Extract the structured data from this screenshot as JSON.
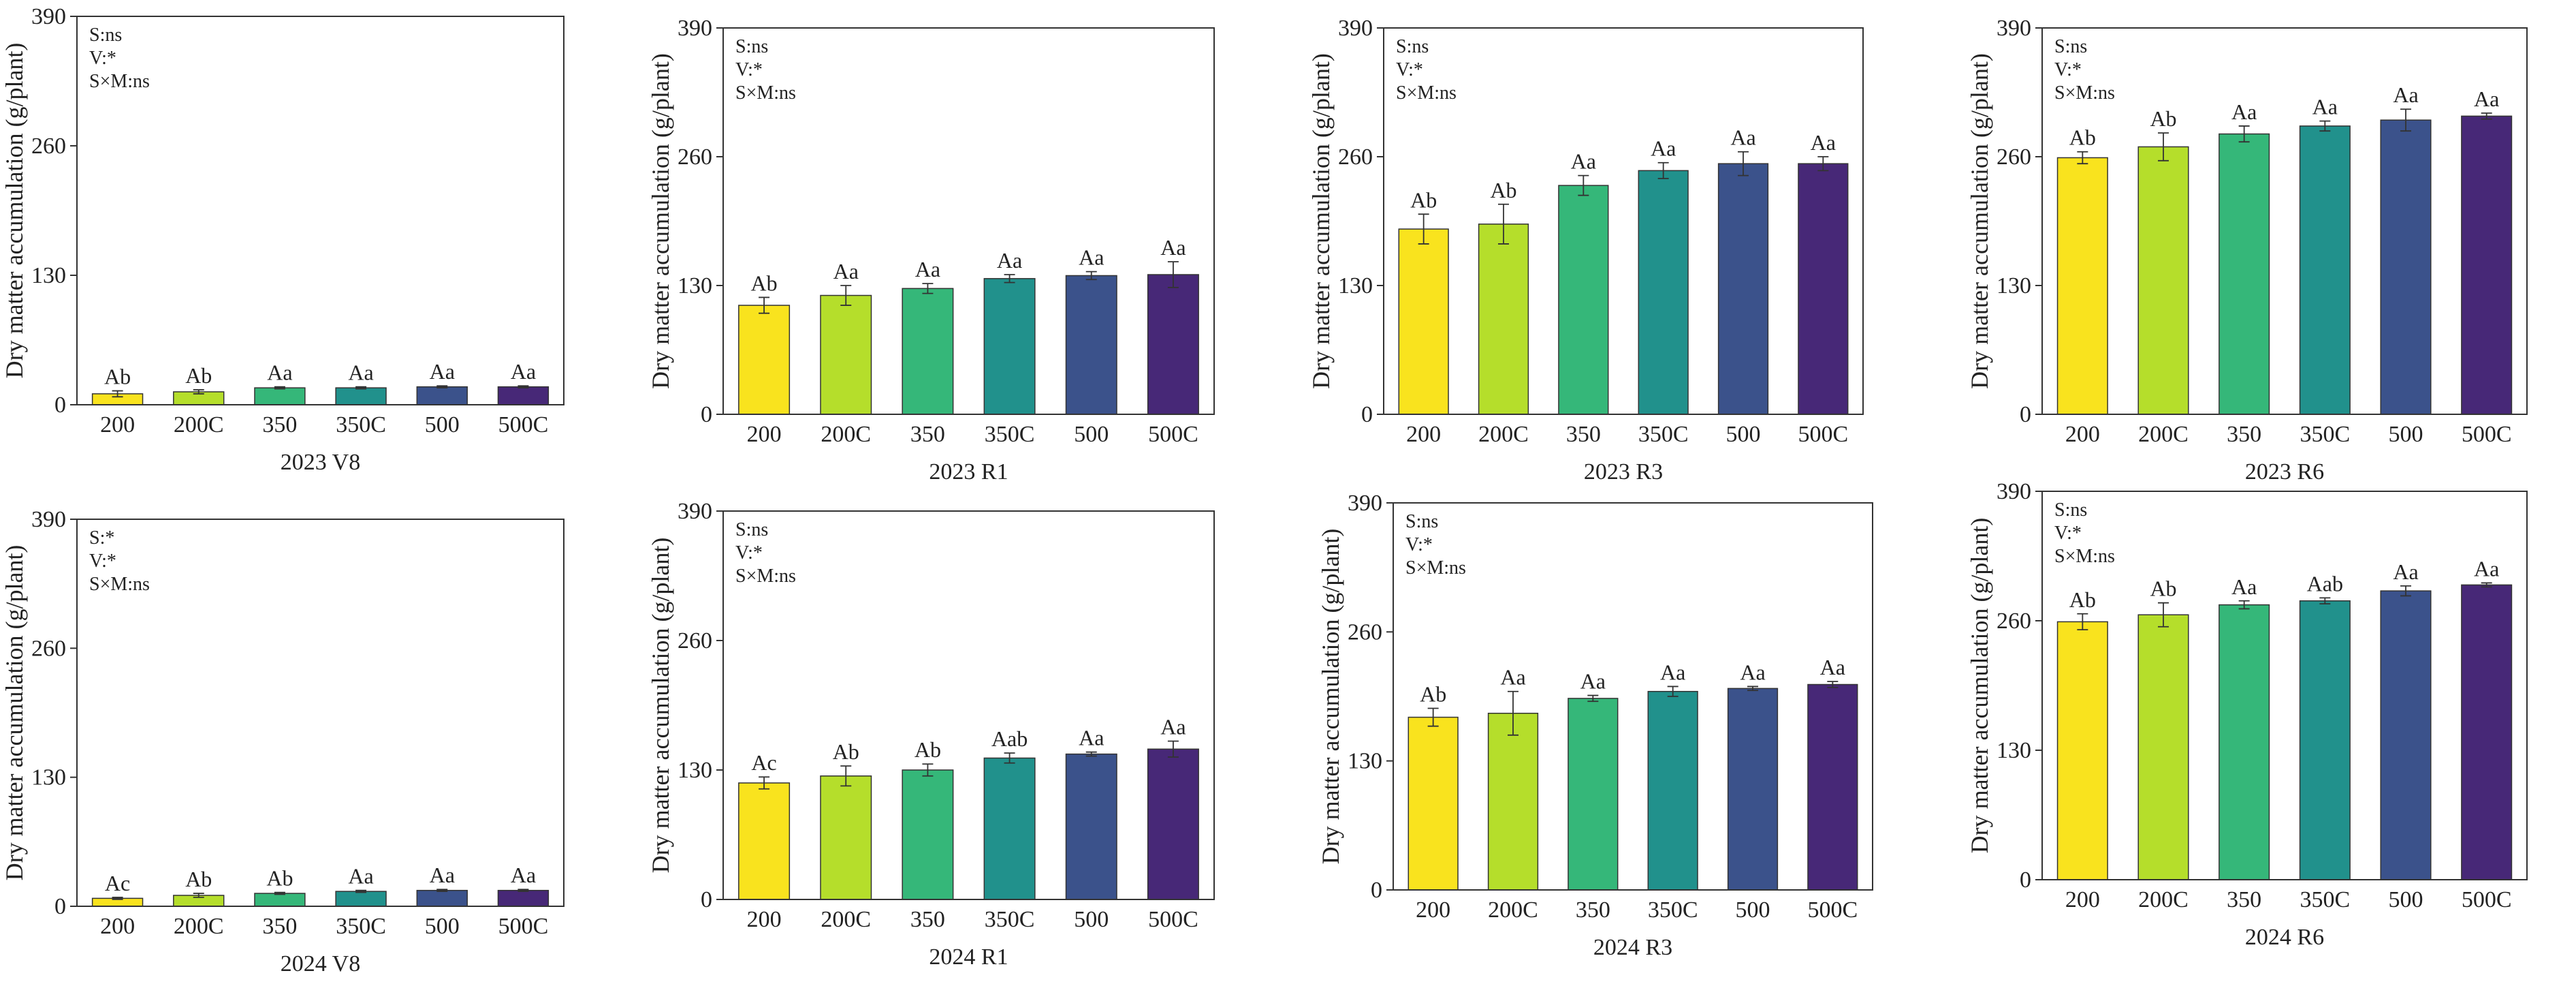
{
  "chart_data": [
    {
      "type": "bar",
      "title": "2023 V8",
      "y_label": "Dry matter accumulation (g/plant)",
      "annotations": [
        "S:ns",
        "V:*",
        "S×M:ns"
      ],
      "categories": [
        "200",
        "200C",
        "350",
        "350C",
        "500",
        "500C"
      ],
      "values": [
        11,
        13,
        17,
        17,
        18,
        18
      ],
      "errors": [
        3,
        2,
        1,
        1,
        1,
        1
      ],
      "significance": [
        "Ab",
        "Ab",
        "Aa",
        "Aa",
        "Aa",
        "Aa"
      ],
      "colors": [
        "#f9e31e",
        "#b5de2b",
        "#35b779",
        "#21918c",
        "#3b528b",
        "#472877"
      ],
      "ylim": [
        0,
        390
      ],
      "yticks": [
        0,
        130,
        260,
        390
      ]
    },
    {
      "type": "bar",
      "title": "2023 R1",
      "y_label": "Dry matter accumulation (g/plant)",
      "annotations": [
        "S:ns",
        "V:*",
        "S×M:ns"
      ],
      "categories": [
        "200",
        "200C",
        "350",
        "350C",
        "500",
        "500C"
      ],
      "values": [
        110,
        120,
        127,
        137,
        140,
        141
      ],
      "errors": [
        8,
        10,
        5,
        4,
        4,
        13
      ],
      "significance": [
        "Ab",
        "Aa",
        "Aa",
        "Aa",
        "Aa",
        "Aa"
      ],
      "colors": [
        "#f9e31e",
        "#b5de2b",
        "#35b779",
        "#21918c",
        "#3b528b",
        "#472877"
      ],
      "ylim": [
        0,
        390
      ],
      "yticks": [
        0,
        130,
        260,
        390
      ]
    },
    {
      "type": "bar",
      "title": "2023 R3",
      "y_label": "Dry matter accumulation (g/plant)",
      "annotations": [
        "S:ns",
        "V:*",
        "S×M:ns"
      ],
      "categories": [
        "200",
        "200C",
        "350",
        "350C",
        "500",
        "500C"
      ],
      "values": [
        187,
        192,
        231,
        246,
        253,
        253
      ],
      "errors": [
        15,
        20,
        10,
        8,
        12,
        7
      ],
      "significance": [
        "Ab",
        "Ab",
        "Aa",
        "Aa",
        "Aa",
        "Aa"
      ],
      "colors": [
        "#f9e31e",
        "#b5de2b",
        "#35b779",
        "#21918c",
        "#3b528b",
        "#472877"
      ],
      "ylim": [
        0,
        390
      ],
      "yticks": [
        0,
        130,
        260,
        390
      ]
    },
    {
      "type": "bar",
      "title": "2023 R6",
      "y_label": "Dry matter accumulation (g/plant)",
      "annotations": [
        "S:ns",
        "V:*",
        "S×M:ns"
      ],
      "categories": [
        "200",
        "200C",
        "350",
        "350C",
        "500",
        "500C"
      ],
      "values": [
        259,
        270,
        283,
        291,
        297,
        301
      ],
      "errors": [
        6,
        14,
        8,
        5,
        11,
        3
      ],
      "significance": [
        "Ab",
        "Ab",
        "Aa",
        "Aa",
        "Aa",
        "Aa"
      ],
      "colors": [
        "#f9e31e",
        "#b5de2b",
        "#35b779",
        "#21918c",
        "#3b528b",
        "#472877"
      ],
      "ylim": [
        0,
        390
      ],
      "yticks": [
        0,
        130,
        260,
        390
      ]
    },
    {
      "type": "bar",
      "title": "2024 V8",
      "y_label": "Dry matter accumulation (g/plant)",
      "annotations": [
        "S:*",
        "V:*",
        "S×M:ns"
      ],
      "categories": [
        "200",
        "200C",
        "350",
        "350C",
        "500",
        "500C"
      ],
      "values": [
        8,
        11,
        13,
        15,
        16,
        16
      ],
      "errors": [
        1,
        2,
        1,
        1,
        1,
        1
      ],
      "significance": [
        "Ac",
        "Ab",
        "Ab",
        "Aa",
        "Aa",
        "Aa"
      ],
      "colors": [
        "#f9e31e",
        "#b5de2b",
        "#35b779",
        "#21918c",
        "#3b528b",
        "#472877"
      ],
      "ylim": [
        0,
        390
      ],
      "yticks": [
        0,
        130,
        260,
        390
      ]
    },
    {
      "type": "bar",
      "title": "2024 R1",
      "y_label": "Dry matter accumulation (g/plant)",
      "annotations": [
        "S:ns",
        "V:*",
        "S×M:ns"
      ],
      "categories": [
        "200",
        "200C",
        "350",
        "350C",
        "500",
        "500C"
      ],
      "values": [
        117,
        124,
        130,
        142,
        146,
        151
      ],
      "errors": [
        6,
        10,
        6,
        5,
        2,
        8
      ],
      "significance": [
        "Ac",
        "Ab",
        "Ab",
        "Aab",
        "Aa",
        "Aa"
      ],
      "colors": [
        "#f9e31e",
        "#b5de2b",
        "#35b779",
        "#21918c",
        "#3b528b",
        "#472877"
      ],
      "ylim": [
        0,
        390
      ],
      "yticks": [
        0,
        130,
        260,
        390
      ]
    },
    {
      "type": "bar",
      "title": "2024 R3",
      "y_label": "Dry matter accumulation (g/plant)",
      "annotations": [
        "S:ns",
        "V:*",
        "S×M:ns"
      ],
      "categories": [
        "200",
        "200C",
        "350",
        "350C",
        "500",
        "500C"
      ],
      "values": [
        174,
        178,
        193,
        200,
        203,
        207
      ],
      "errors": [
        9,
        22,
        3,
        5,
        2,
        3
      ],
      "significance": [
        "Ab",
        "Aa",
        "Aa",
        "Aa",
        "Aa",
        "Aa"
      ],
      "colors": [
        "#f9e31e",
        "#b5de2b",
        "#35b779",
        "#21918c",
        "#3b528b",
        "#472877"
      ],
      "ylim": [
        0,
        390
      ],
      "yticks": [
        0,
        130,
        260,
        390
      ]
    },
    {
      "type": "bar",
      "title": "2024 R6",
      "y_label": "Dry matter accumulation (g/plant)",
      "annotations": [
        "S:ns",
        "V:*",
        "S×M:ns"
      ],
      "categories": [
        "200",
        "200C",
        "350",
        "350C",
        "500",
        "500C"
      ],
      "values": [
        259,
        266,
        276,
        280,
        290,
        296
      ],
      "errors": [
        8,
        12,
        4,
        3,
        5,
        2
      ],
      "significance": [
        "Ab",
        "Ab",
        "Aa",
        "Aab",
        "Aa",
        "Aa"
      ],
      "colors": [
        "#f9e31e",
        "#b5de2b",
        "#35b779",
        "#21918c",
        "#3b528b",
        "#472877"
      ],
      "ylim": [
        0,
        390
      ],
      "yticks": [
        0,
        130,
        260,
        390
      ]
    }
  ]
}
